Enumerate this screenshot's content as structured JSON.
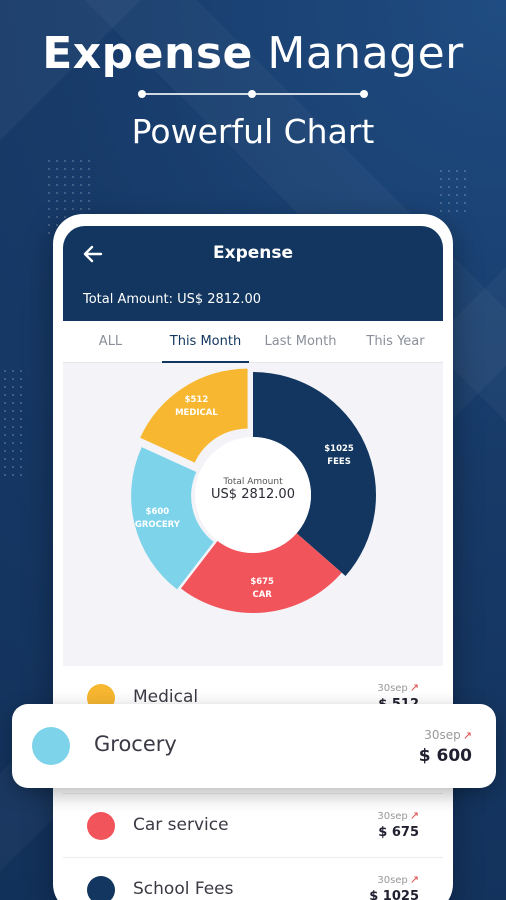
{
  "hero": {
    "title_bold": "Expense",
    "title_light": "Manager",
    "subtitle": "Powerful Chart"
  },
  "appbar": {
    "title": "Expense",
    "total": "Total Amount: US$ 2812.00"
  },
  "tabs": [
    {
      "label": "ALL"
    },
    {
      "label": "This Month"
    },
    {
      "label": "Last Month"
    },
    {
      "label": "This Year"
    }
  ],
  "active_tab": "This Month",
  "chart_data": {
    "type": "pie",
    "center_title": "Total Amount",
    "center_value": "US$ 2812.00",
    "slices": [
      {
        "name": "FEES",
        "value": 1025,
        "label": "$1025",
        "color": "#12365f"
      },
      {
        "name": "CAR",
        "value": 675,
        "label": "$675",
        "color": "#f2545b"
      },
      {
        "name": "GROCERY",
        "value": 600,
        "label": "$600",
        "color": "#7dd3e9"
      },
      {
        "name": "MEDICAL",
        "value": 512,
        "label": "$512",
        "color": "#f7b731"
      }
    ]
  },
  "list": [
    {
      "label": "Medical",
      "date": "30sep",
      "amount": "$ 512",
      "color": "#f7b731"
    },
    {
      "label": "Grocery",
      "date": "30sep",
      "amount": "$ 600",
      "color": "#7dd3e9"
    },
    {
      "label": "Car service",
      "date": "30sep",
      "amount": "$ 675",
      "color": "#f2545b"
    },
    {
      "label": "School Fees",
      "date": "30sep",
      "amount": "$ 1025",
      "color": "#12365f"
    }
  ],
  "highlight": {
    "label": "Grocery",
    "date": "30sep",
    "amount": "$ 600"
  }
}
